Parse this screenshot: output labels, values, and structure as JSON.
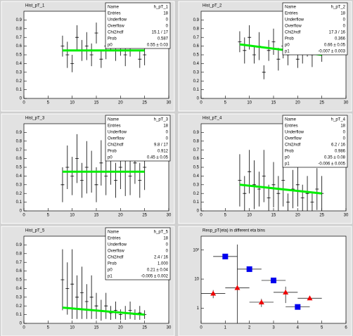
{
  "chart_data": [
    {
      "type": "errorbar",
      "title": "Hist_pT_1",
      "xlim": [
        0,
        30
      ],
      "ylim": [
        0,
        1
      ],
      "xticks": [
        0,
        5,
        10,
        15,
        20,
        25,
        30
      ],
      "yticks": [
        0,
        0.1,
        0.2,
        0.3,
        0.4,
        0.5,
        0.6,
        0.7,
        0.8,
        0.9
      ],
      "x": [
        8,
        9,
        10,
        11,
        12,
        13,
        14,
        15,
        16,
        17,
        18,
        19,
        20,
        21,
        22,
        23,
        24,
        25
      ],
      "values": [
        0.6,
        0.5,
        0.4,
        0.7,
        0.55,
        0.6,
        0.5,
        0.75,
        0.45,
        0.6,
        0.7,
        0.55,
        0.65,
        0.5,
        0.6,
        0.75,
        0.45,
        0.5
      ],
      "errors": [
        0.12,
        0.15,
        0.1,
        0.14,
        0.12,
        0.16,
        0.13,
        0.12,
        0.1,
        0.15,
        0.14,
        0.12,
        0.16,
        0.13,
        0.12,
        0.14,
        0.1,
        0.12
      ],
      "fit": {
        "color": "#00ee00",
        "x": [
          8,
          25
        ],
        "values": [
          0.55,
          0.55
        ]
      },
      "stats": [
        {
          "label": "Name",
          "value": "h_pT_1"
        },
        {
          "label": "Entries",
          "value": "18"
        },
        {
          "label": "Underflow",
          "value": "0"
        },
        {
          "label": "Overflow",
          "value": "0"
        },
        {
          "label": "Chi2/ndf",
          "value": "15.1 / 17"
        },
        {
          "label": "Prob",
          "value": "0.587"
        },
        {
          "label": "p0",
          "value": "0.55 ± 0.03"
        }
      ]
    },
    {
      "type": "errorbar",
      "title": "Hist_pT_2",
      "xlim": [
        0,
        30
      ],
      "ylim": [
        0,
        1
      ],
      "xticks": [
        0,
        5,
        10,
        15,
        20,
        25,
        30
      ],
      "yticks": [
        0,
        0.1,
        0.2,
        0.3,
        0.4,
        0.5,
        0.6,
        0.7,
        0.8,
        0.9
      ],
      "x": [
        8,
        9,
        10,
        11,
        12,
        13,
        14,
        15,
        16,
        17,
        18,
        19,
        20,
        21,
        22,
        23,
        24,
        25
      ],
      "values": [
        0.65,
        0.55,
        0.7,
        0.5,
        0.6,
        0.3,
        0.55,
        0.65,
        0.45,
        0.6,
        0.5,
        0.7,
        0.45,
        0.55,
        0.6,
        0.5,
        0.65,
        0.55
      ],
      "errors": [
        0.12,
        0.15,
        0.14,
        0.1,
        0.16,
        0.08,
        0.12,
        0.15,
        0.13,
        0.14,
        0.12,
        0.16,
        0.1,
        0.15,
        0.12,
        0.14,
        0.12,
        0.13
      ],
      "fit": {
        "color": "#00ee00",
        "x": [
          8,
          25
        ],
        "values": [
          0.62,
          0.5
        ]
      },
      "stats": [
        {
          "label": "Name",
          "value": "h_pT_2"
        },
        {
          "label": "Entries",
          "value": "18"
        },
        {
          "label": "Underflow",
          "value": "0"
        },
        {
          "label": "Overflow",
          "value": "0"
        },
        {
          "label": "Chi2/ndf",
          "value": "17.3 / 16"
        },
        {
          "label": "Prob",
          "value": "0.366"
        },
        {
          "label": "p0",
          "value": "0.66 ± 0.05"
        },
        {
          "label": "p1",
          "value": "-0.007 ± 0.003"
        }
      ]
    },
    {
      "type": "errorbar",
      "title": "Hist_pT_3",
      "xlim": [
        0,
        30
      ],
      "ylim": [
        0,
        1
      ],
      "xticks": [
        0,
        5,
        10,
        15,
        20,
        25,
        30
      ],
      "yticks": [
        0,
        0.1,
        0.2,
        0.3,
        0.4,
        0.5,
        0.6,
        0.7,
        0.8,
        0.9
      ],
      "x": [
        8,
        9,
        10,
        11,
        12,
        13,
        14,
        15,
        16,
        17,
        18,
        19,
        20,
        21,
        22,
        23,
        24,
        25
      ],
      "values": [
        0.3,
        0.5,
        0.4,
        0.6,
        0.35,
        0.5,
        0.45,
        0.3,
        0.55,
        0.4,
        0.6,
        0.35,
        0.5,
        0.45,
        0.4,
        0.55,
        0.35,
        0.5
      ],
      "errors": [
        0.2,
        0.25,
        0.22,
        0.28,
        0.2,
        0.3,
        0.24,
        0.2,
        0.26,
        0.22,
        0.3,
        0.2,
        0.25,
        0.28,
        0.22,
        0.24,
        0.2,
        0.26
      ],
      "fit": {
        "color": "#00ee00",
        "x": [
          8,
          25
        ],
        "values": [
          0.45,
          0.45
        ]
      },
      "stats": [
        {
          "label": "Name",
          "value": "h_pT_3"
        },
        {
          "label": "Entries",
          "value": "18"
        },
        {
          "label": "Underflow",
          "value": "0"
        },
        {
          "label": "Overflow",
          "value": "0"
        },
        {
          "label": "Chi2/ndf",
          "value": "9.8 / 17"
        },
        {
          "label": "Prob",
          "value": "0.912"
        },
        {
          "label": "p0",
          "value": "0.45 ± 0.05"
        }
      ]
    },
    {
      "type": "errorbar",
      "title": "Hist_pT_4",
      "xlim": [
        0,
        30
      ],
      "ylim": [
        0,
        1
      ],
      "xticks": [
        0,
        5,
        10,
        15,
        20,
        25,
        30
      ],
      "yticks": [
        0,
        0.1,
        0.2,
        0.3,
        0.4,
        0.5,
        0.6,
        0.7,
        0.8,
        0.9
      ],
      "x": [
        8,
        9,
        10,
        11,
        12,
        13,
        14,
        15,
        16,
        17,
        18,
        19,
        20,
        21,
        22,
        23,
        24,
        25
      ],
      "values": [
        0.35,
        0.2,
        0.45,
        0.3,
        0.25,
        0.4,
        0.15,
        0.3,
        0.2,
        0.35,
        0.1,
        0.25,
        0.3,
        0.15,
        0.2,
        0.1,
        0.25,
        0.2
      ],
      "errors": [
        0.3,
        0.2,
        0.25,
        0.28,
        0.2,
        0.3,
        0.15,
        0.26,
        0.2,
        0.3,
        0.1,
        0.22,
        0.25,
        0.15,
        0.2,
        0.1,
        0.24,
        0.2
      ],
      "fit": {
        "color": "#00ee00",
        "x": [
          8,
          25
        ],
        "values": [
          0.3,
          0.2
        ]
      },
      "stats": [
        {
          "label": "Name",
          "value": "h_pT_4"
        },
        {
          "label": "Entries",
          "value": "18"
        },
        {
          "label": "Underflow",
          "value": "0"
        },
        {
          "label": "Overflow",
          "value": "0"
        },
        {
          "label": "Chi2/ndf",
          "value": "6.2 / 16"
        },
        {
          "label": "Prob",
          "value": "0.986"
        },
        {
          "label": "p0",
          "value": "0.35 ± 0.08"
        },
        {
          "label": "p1",
          "value": "-0.006 ± 0.005"
        }
      ]
    },
    {
      "type": "errorbar",
      "title": "Hist_pT_5",
      "xlim": [
        0,
        30
      ],
      "ylim": [
        0,
        1
      ],
      "xticks": [
        0,
        5,
        10,
        15,
        20,
        25,
        30
      ],
      "yticks": [
        0,
        0.1,
        0.2,
        0.3,
        0.4,
        0.5,
        0.6,
        0.7,
        0.8,
        0.9
      ],
      "x": [
        8,
        9,
        10,
        11,
        12,
        13,
        14,
        15,
        16,
        17,
        18,
        19,
        20,
        21,
        22,
        23,
        24,
        25
      ],
      "values": [
        0.5,
        0.4,
        0.45,
        0.3,
        0.35,
        0.25,
        0.3,
        0.2,
        0.15,
        0.2,
        0.12,
        0.15,
        0.1,
        0.12,
        0.15,
        0.1,
        0.12,
        0.1
      ],
      "errors": [
        0.35,
        0.3,
        0.4,
        0.25,
        0.3,
        0.2,
        0.25,
        0.15,
        0.12,
        0.15,
        0.08,
        0.1,
        0.06,
        0.08,
        0.1,
        0.06,
        0.08,
        0.05
      ],
      "fit": {
        "color": "#00ee00",
        "x": [
          8,
          25
        ],
        "values": [
          0.18,
          0.1
        ]
      },
      "stats": [
        {
          "label": "Name",
          "value": "h_pT_5"
        },
        {
          "label": "Entries",
          "value": "18"
        },
        {
          "label": "Underflow",
          "value": "0"
        },
        {
          "label": "Overflow",
          "value": "0"
        },
        {
          "label": "Chi2/ndf",
          "value": "2.4 / 16"
        },
        {
          "label": "Prob",
          "value": "1.000"
        },
        {
          "label": "p0",
          "value": "0.21 ± 0.04"
        },
        {
          "label": "p1",
          "value": "-0.005 ± 0.002"
        }
      ]
    },
    {
      "type": "scatter",
      "title": "Resp_pT(eta) in different eta bins",
      "xlim": [
        0,
        6
      ],
      "ylim": [
        0.3,
        300
      ],
      "log_y": true,
      "xticks": [
        0,
        1,
        2,
        3,
        4,
        5,
        6
      ],
      "yticks": [
        {
          "value": 1,
          "label": "1"
        },
        {
          "value": 10,
          "label": "10"
        },
        {
          "value": 100,
          "label": "10²"
        }
      ],
      "series": [
        {
          "color": "#0000ee",
          "marker": "square",
          "x": [
            1,
            2,
            3,
            4
          ],
          "xerr": [
            0.5,
            0.5,
            0.5,
            0.5
          ],
          "values": [
            60,
            22,
            9,
            1.1
          ],
          "yerr": [
            0,
            0,
            0,
            0
          ]
        },
        {
          "color": "#ee0000",
          "marker": "triangle",
          "x": [
            0.5,
            1.5,
            2.5,
            3.5,
            4.5
          ],
          "xerr": [
            0.5,
            0.5,
            0.5,
            0.5,
            0.5
          ],
          "values": [
            3.2,
            5,
            1.6,
            3.5,
            2.2
          ],
          "yerr": [
            1,
            150,
            0.5,
            2,
            0
          ]
        }
      ]
    }
  ]
}
